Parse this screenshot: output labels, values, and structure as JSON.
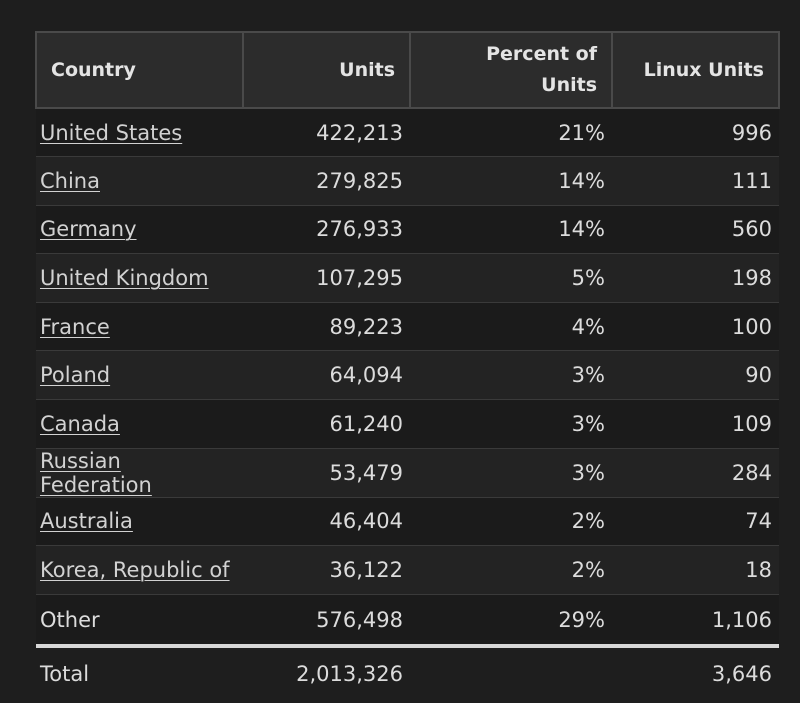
{
  "table": {
    "headers": {
      "country": "Country",
      "units": "Units",
      "percent": "Percent of Units",
      "linux": "Linux Units"
    },
    "rows": [
      {
        "country": "United States",
        "units": "422,213",
        "percent": "21%",
        "linux": "996"
      },
      {
        "country": "China",
        "units": "279,825",
        "percent": "14%",
        "linux": "111"
      },
      {
        "country": "Germany",
        "units": "276,933",
        "percent": "14%",
        "linux": "560"
      },
      {
        "country": "United Kingdom",
        "units": "107,295",
        "percent": "5%",
        "linux": "198"
      },
      {
        "country": "France",
        "units": "89,223",
        "percent": "4%",
        "linux": "100"
      },
      {
        "country": "Poland",
        "units": "64,094",
        "percent": "3%",
        "linux": "90"
      },
      {
        "country": "Canada",
        "units": "61,240",
        "percent": "3%",
        "linux": "109"
      },
      {
        "country": "Russian Federation",
        "units": "53,479",
        "percent": "3%",
        "linux": "284"
      },
      {
        "country": "Australia",
        "units": "46,404",
        "percent": "2%",
        "linux": "74"
      },
      {
        "country": "Korea, Republic of",
        "units": "36,122",
        "percent": "2%",
        "linux": "18"
      }
    ],
    "other": {
      "country": "Other",
      "units": "576,498",
      "percent": "29%",
      "linux": "1,106"
    },
    "total": {
      "label": "Total",
      "units": "2,013,326",
      "percent": "",
      "linux": "3,646"
    }
  },
  "colors": {
    "background": "#1e1e1e",
    "header_bg": "#2c2c2c",
    "header_border": "#4a4a4a",
    "text": "#dcdcdc"
  }
}
